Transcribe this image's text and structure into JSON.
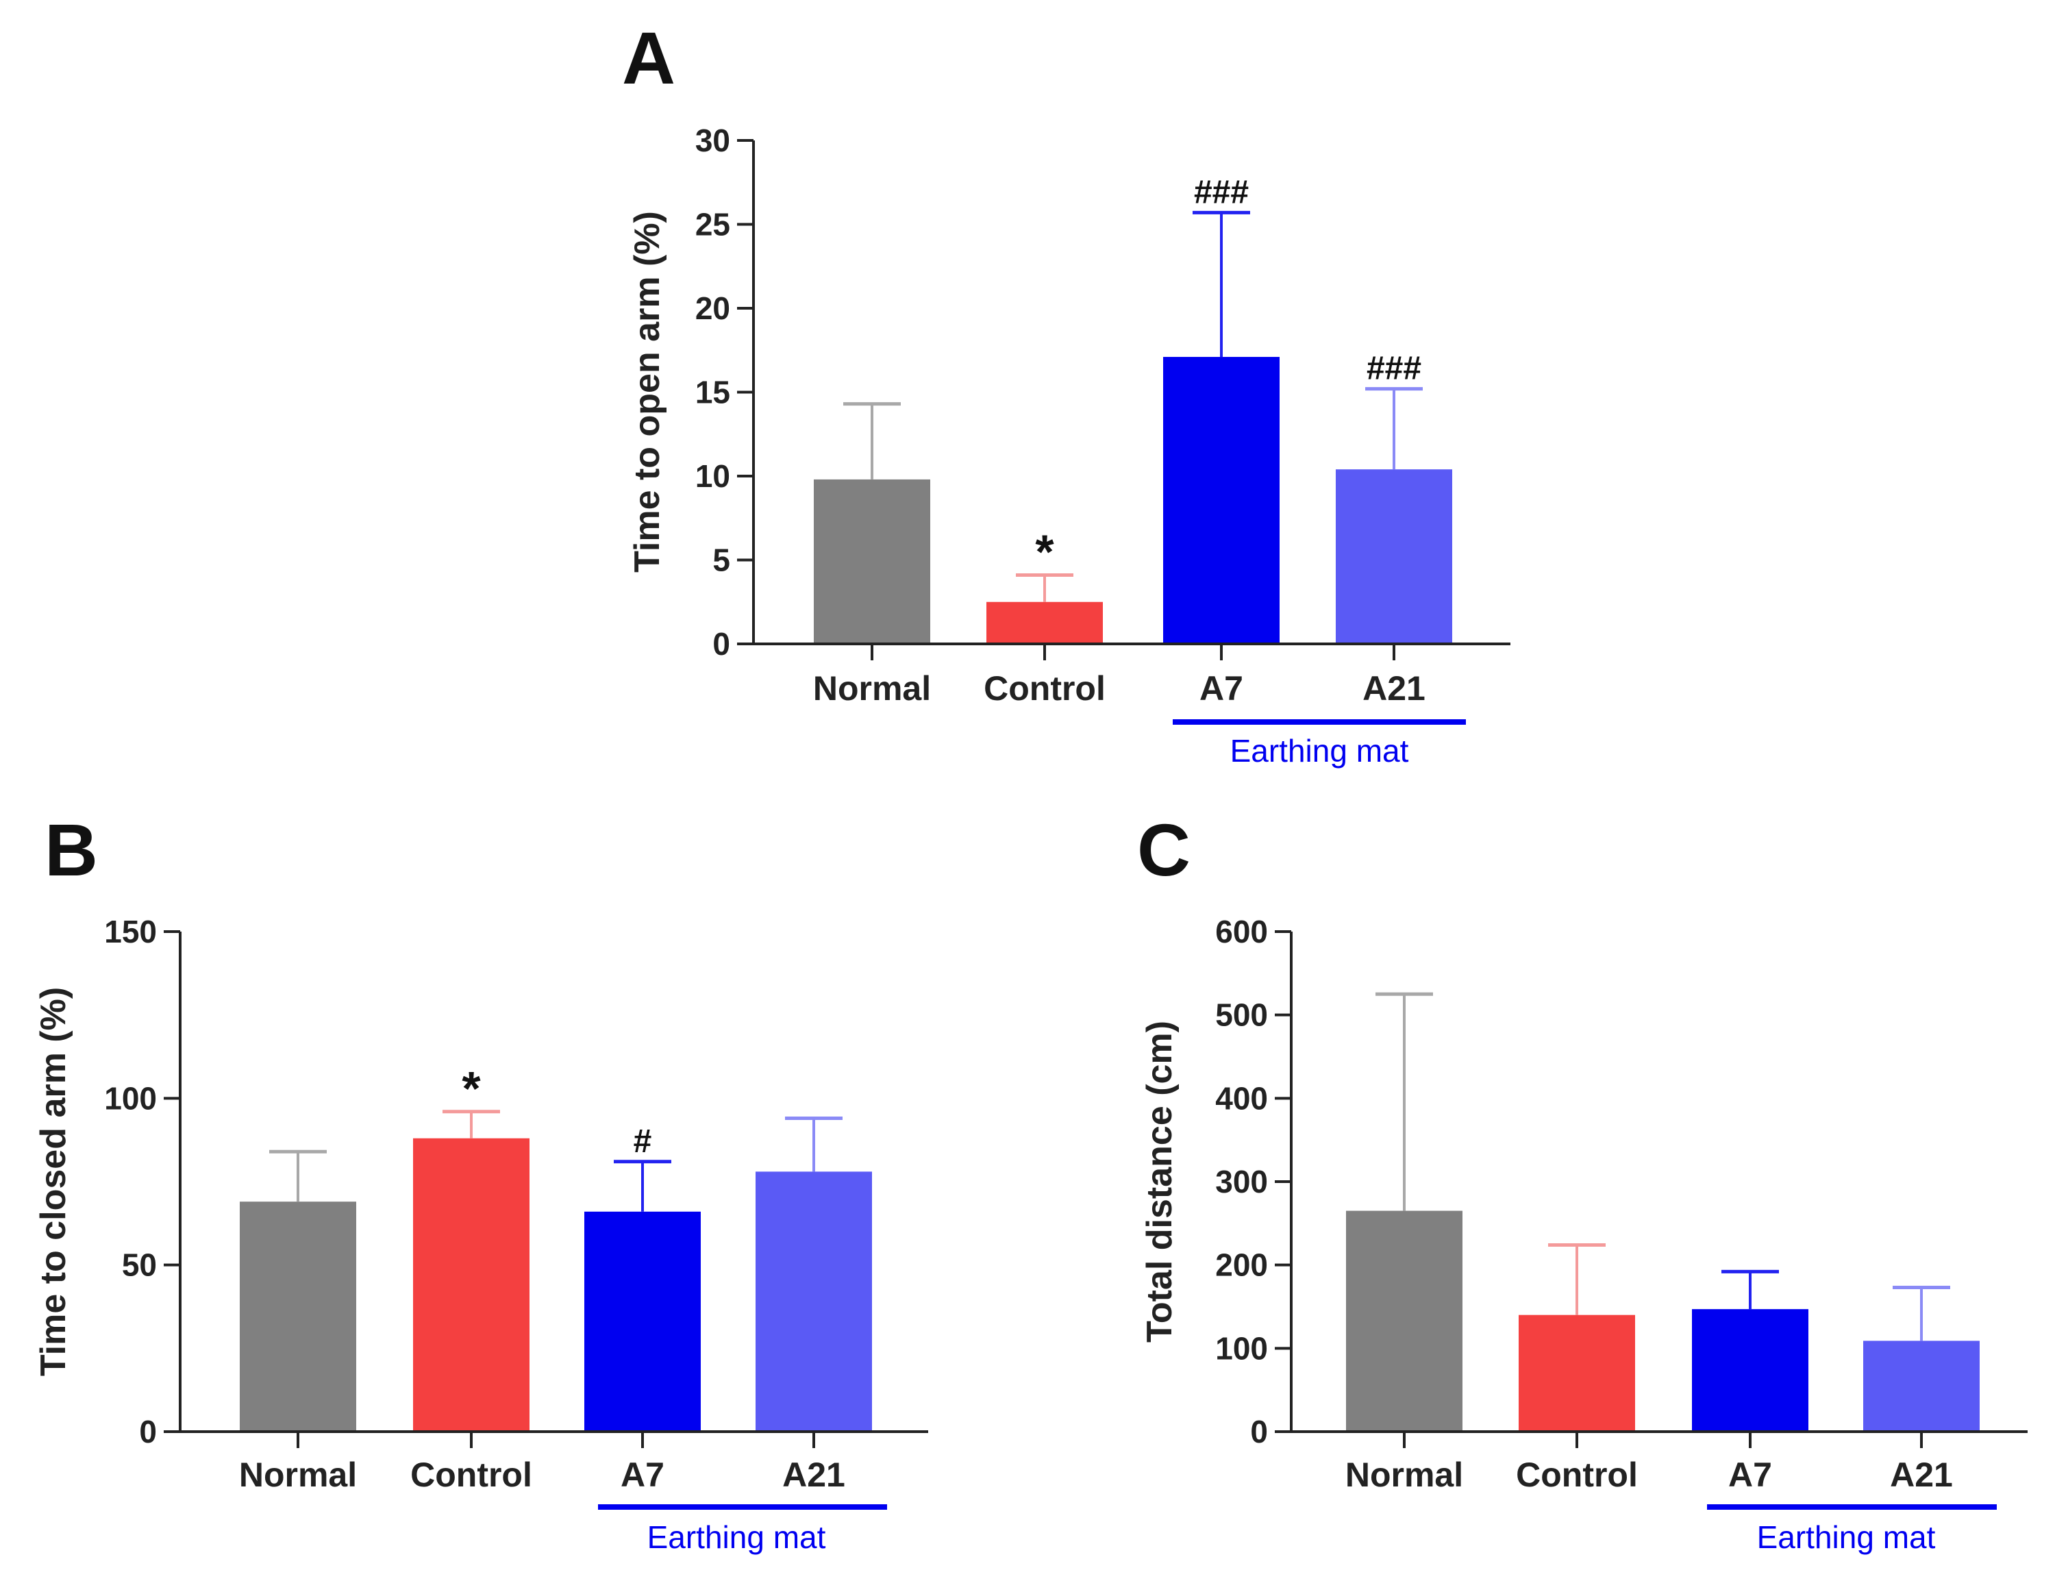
{
  "chart_data": [
    {
      "panel": "A",
      "type": "bar",
      "categories": [
        "Normal",
        "Control",
        "A7",
        "A21"
      ],
      "values": [
        9.8,
        2.5,
        17.1,
        10.4
      ],
      "errors": [
        4.5,
        1.6,
        8.6,
        4.8
      ],
      "significance": [
        "",
        "*",
        "###",
        "###"
      ],
      "colors": [
        "#808080",
        "#F44040",
        "#0000F0",
        "#5A5AF5"
      ],
      "ylabel": "Time to open arm (%)",
      "ylim": [
        0,
        30
      ],
      "yticks": [
        0,
        5,
        10,
        15,
        20,
        25,
        30
      ],
      "group_label": "Earthing mat",
      "group_members": [
        "A7",
        "A21"
      ]
    },
    {
      "panel": "B",
      "type": "bar",
      "categories": [
        "Normal",
        "Control",
        "A7",
        "A21"
      ],
      "values": [
        69,
        88,
        66,
        78
      ],
      "errors": [
        15,
        8,
        15,
        16
      ],
      "significance": [
        "",
        "*",
        "#",
        ""
      ],
      "colors": [
        "#808080",
        "#F44040",
        "#0000F0",
        "#5A5AF5"
      ],
      "ylabel": "Time to closed arm (%)",
      "ylim": [
        0,
        150
      ],
      "yticks": [
        0,
        50,
        100,
        150
      ],
      "group_label": "Earthing mat",
      "group_members": [
        "A7",
        "A21"
      ]
    },
    {
      "panel": "C",
      "type": "bar",
      "categories": [
        "Normal",
        "Control",
        "A7",
        "A21"
      ],
      "values": [
        265,
        140,
        147,
        109
      ],
      "errors": [
        260,
        84,
        45,
        64
      ],
      "significance": [
        "",
        "",
        "",
        ""
      ],
      "colors": [
        "#808080",
        "#F44040",
        "#0000F0",
        "#5A5AF5"
      ],
      "ylabel": "Total distance  (cm)",
      "ylim": [
        0,
        600
      ],
      "yticks": [
        0,
        100,
        200,
        300,
        400,
        500,
        600
      ],
      "group_label": "Earthing mat",
      "group_members": [
        "A7",
        "A21"
      ]
    }
  ],
  "errorbar_colors": [
    "#A8A8A8",
    "#F49A9A",
    "#2222F0",
    "#8A8AF6"
  ],
  "group_line_color": "#0000F0"
}
